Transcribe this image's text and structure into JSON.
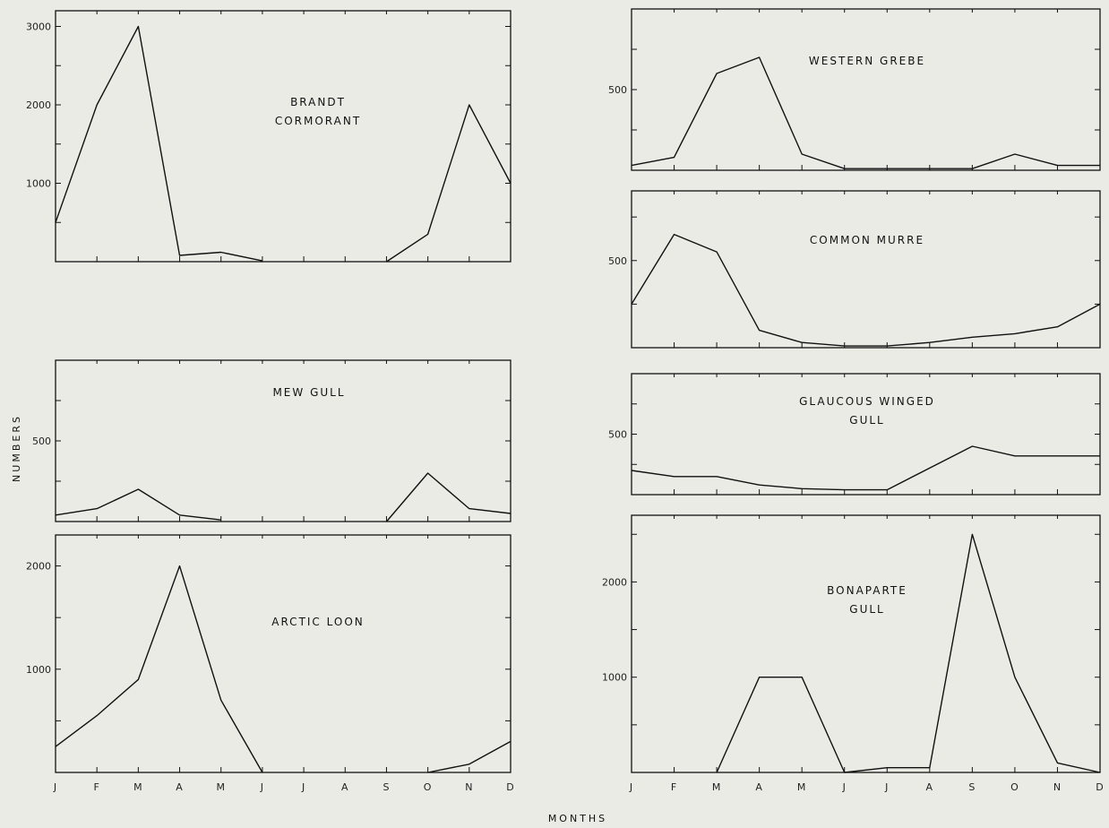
{
  "figure": {
    "ylabel": "NUMBERS",
    "xlabel": "MONTHS",
    "months": [
      "J",
      "F",
      "M",
      "A",
      "M",
      "J",
      "J",
      "A",
      "S",
      "O",
      "N",
      "D"
    ]
  },
  "chart_data": [
    {
      "type": "line",
      "title_lines": [
        "BRANDT",
        "CORMORANT"
      ],
      "ylim": [
        0,
        3200
      ],
      "yticks": [
        1000,
        2000,
        3000
      ],
      "values": [
        500,
        2000,
        3000,
        80,
        120,
        10,
        null,
        0,
        350,
        2000,
        1000,
        null
      ],
      "x_index": [
        0,
        1,
        2,
        3,
        4,
        5,
        6,
        8,
        9,
        10,
        11,
        null
      ]
    },
    {
      "type": "line",
      "title_lines": [
        "MEW GULL"
      ],
      "ylim": [
        0,
        1000
      ],
      "yticks": [
        500
      ],
      "values": [
        40,
        80,
        200,
        40,
        10,
        null,
        null,
        0,
        300,
        80,
        50,
        40
      ],
      "x_index": [
        0,
        1,
        2,
        3,
        4,
        5,
        6,
        8,
        9,
        10,
        11,
        null
      ]
    },
    {
      "type": "line",
      "title_lines": [
        "ARCTIC LOON"
      ],
      "ylim": [
        0,
        2300
      ],
      "yticks": [
        1000,
        2000
      ],
      "values": [
        250,
        550,
        900,
        2000,
        700,
        0,
        null,
        null,
        null,
        0,
        80,
        300
      ],
      "x_index": [
        0,
        1,
        2,
        3,
        4,
        5,
        6,
        7,
        8,
        9,
        10,
        11
      ]
    },
    {
      "type": "line",
      "title_lines": [
        "WESTERN GREBE"
      ],
      "ylim": [
        0,
        1000
      ],
      "yticks": [
        500
      ],
      "values": [
        30,
        80,
        600,
        700,
        100,
        10,
        10,
        10,
        10,
        100,
        30,
        30
      ],
      "x_index": [
        0,
        1,
        2,
        3,
        4,
        5,
        6,
        7,
        8,
        9,
        10,
        11
      ]
    },
    {
      "type": "line",
      "title_lines": [
        "COMMON MURRE"
      ],
      "ylim": [
        0,
        900
      ],
      "yticks": [
        500
      ],
      "values": [
        250,
        650,
        550,
        100,
        30,
        10,
        10,
        30,
        60,
        80,
        120,
        250
      ],
      "x_index": [
        0,
        1,
        2,
        3,
        4,
        5,
        6,
        7,
        8,
        9,
        10,
        11
      ]
    },
    {
      "type": "line",
      "title_lines": [
        "GLAUCOUS WINGED",
        "GULL"
      ],
      "ylim": [
        0,
        1000
      ],
      "yticks": [
        500
      ],
      "values": [
        200,
        150,
        150,
        80,
        50,
        40,
        40,
        400,
        320,
        320,
        320,
        null
      ],
      "x_index": [
        0,
        1,
        2,
        3,
        4,
        5,
        6,
        8,
        9,
        10,
        11,
        null
      ]
    },
    {
      "type": "line",
      "title_lines": [
        "BONAPARTE",
        "GULL"
      ],
      "ylim": [
        0,
        2700
      ],
      "yticks": [
        1000,
        2000
      ],
      "values": [
        null,
        null,
        0,
        1000,
        1000,
        0,
        50,
        50,
        2500,
        1000,
        100,
        0
      ],
      "x_index": [
        0,
        1,
        2,
        3,
        4,
        5,
        6,
        7,
        8,
        9,
        10,
        11
      ]
    }
  ]
}
